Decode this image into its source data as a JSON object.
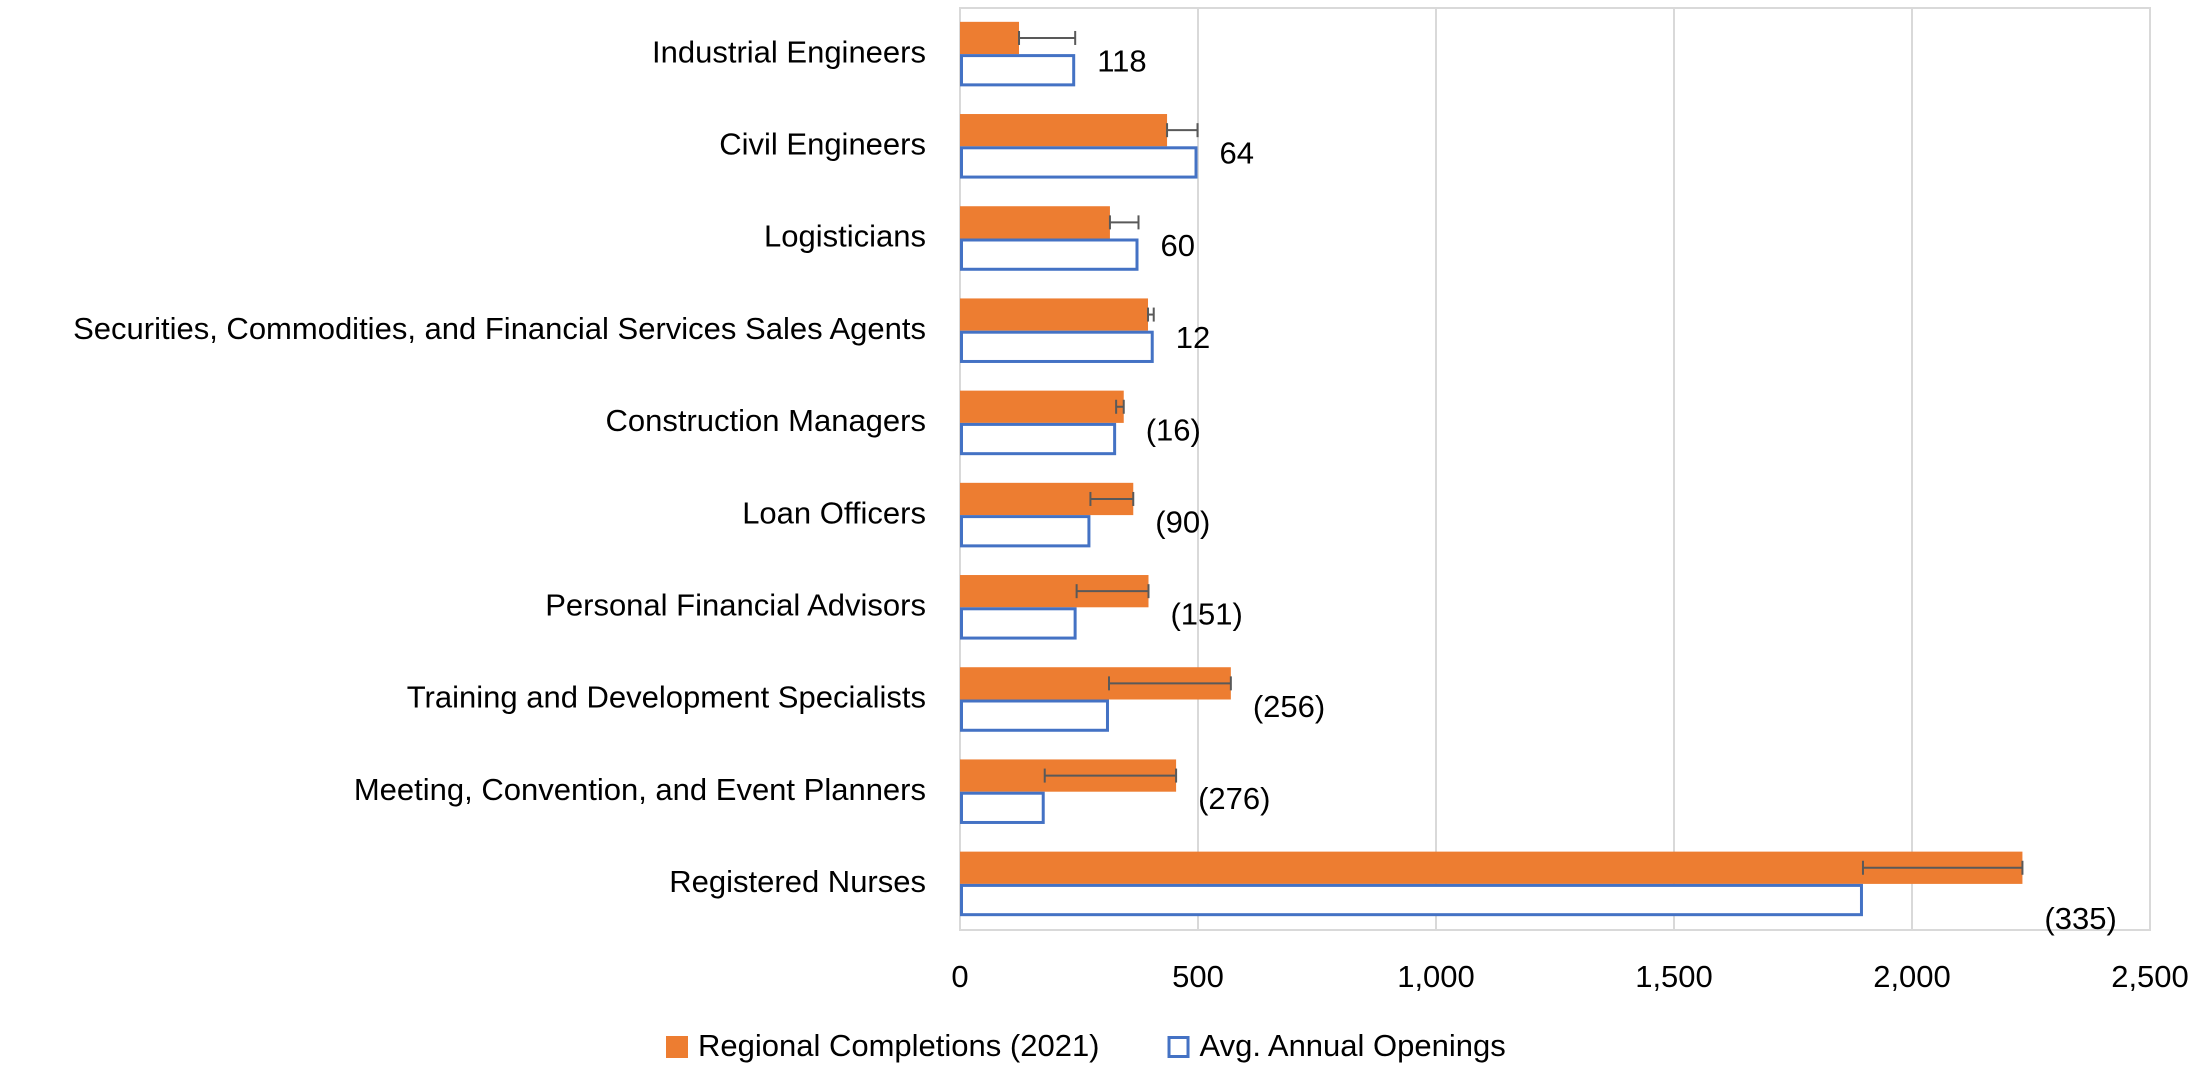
{
  "chart_data": {
    "type": "bar",
    "orientation": "horizontal",
    "categories": [
      "Industrial Engineers",
      "Civil Engineers",
      "Logisticians",
      "Securities, Commodities, and Financial Services Sales Agents",
      "Construction Managers",
      "Loan Officers",
      "Personal Financial Advisors",
      "Training and Development Specialists",
      "Meeting, Convention, and Event Planners",
      "Registered Nurses"
    ],
    "series": [
      {
        "name": "Regional Completions (2021)",
        "color": "#ed7d31",
        "fill": true,
        "values": [
          124,
          435,
          315,
          395,
          344,
          364,
          396,
          569,
          454,
          2232
        ]
      },
      {
        "name": "Avg. Annual Openings",
        "color": "#4472c4",
        "fill": false,
        "values": [
          242,
          499,
          375,
          407,
          328,
          274,
          245,
          313,
          178,
          1897
        ]
      }
    ],
    "differences": {
      "values": [
        118,
        64,
        60,
        12,
        -16,
        -90,
        -151,
        -256,
        -276,
        -335
      ],
      "value_labels": [
        "118",
        "64",
        "60",
        "12",
        "(16)",
        "(90)",
        "(151)",
        "(256)",
        "(276)",
        "(335)"
      ]
    },
    "xlim": [
      0,
      2500
    ],
    "xticks": [
      0,
      500,
      {
        "value": 1000,
        "label": "1,000"
      },
      {
        "value": 1500,
        "label": "1,500"
      },
      {
        "value": 2000,
        "label": "2,000"
      },
      {
        "value": 2500,
        "label": "2,500"
      }
    ],
    "grid": true,
    "legend": "bottom"
  }
}
